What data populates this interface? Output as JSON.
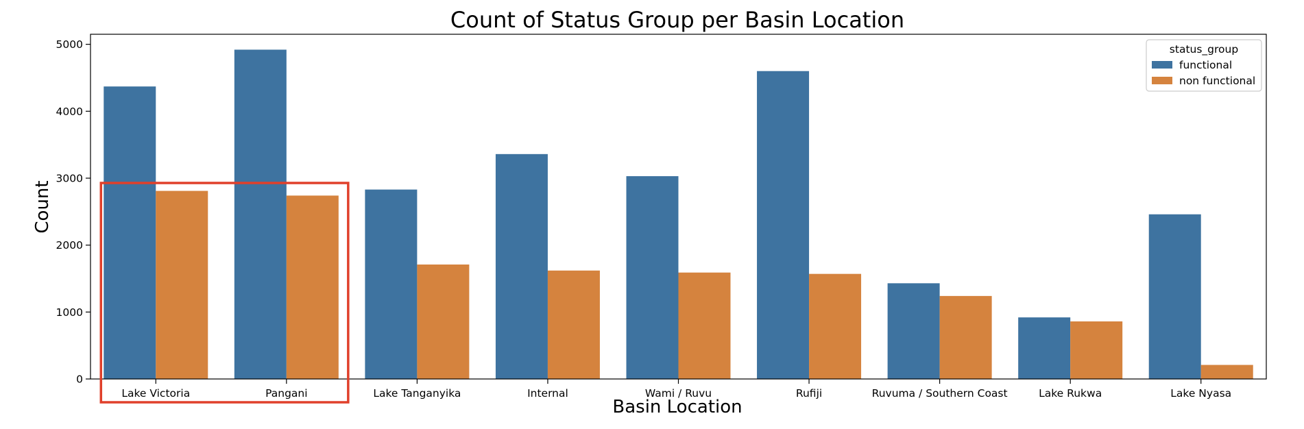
{
  "chart_data": {
    "type": "bar",
    "title": "Count of Status Group per Basin Location",
    "xlabel": "Basin Location",
    "ylabel": "Count",
    "categories": [
      "Lake Victoria",
      "Pangani",
      "Lake Tanganyika",
      "Internal",
      "Wami / Ruvu",
      "Rufiji",
      "Ruvuma / Southern Coast",
      "Lake Rukwa",
      "Lake Nyasa"
    ],
    "series": [
      {
        "name": "functional",
        "color": "#3e73a0",
        "values": [
          4370,
          4920,
          2830,
          3360,
          3030,
          4600,
          1430,
          920,
          2460
        ]
      },
      {
        "name": "non functional",
        "color": "#d5833e",
        "values": [
          2810,
          2740,
          1710,
          1620,
          1590,
          1570,
          1240,
          860,
          210
        ]
      }
    ],
    "ylim": [
      0,
      5150
    ],
    "yticks": [
      0,
      1000,
      2000,
      3000,
      4000,
      5000
    ],
    "legend": {
      "title": "status_group",
      "placement": "top-right"
    },
    "grid": false,
    "annotation": {
      "type": "highlight-box",
      "color": "#e0402b",
      "categories": [
        "Lake Victoria",
        "Pangani"
      ]
    }
  }
}
